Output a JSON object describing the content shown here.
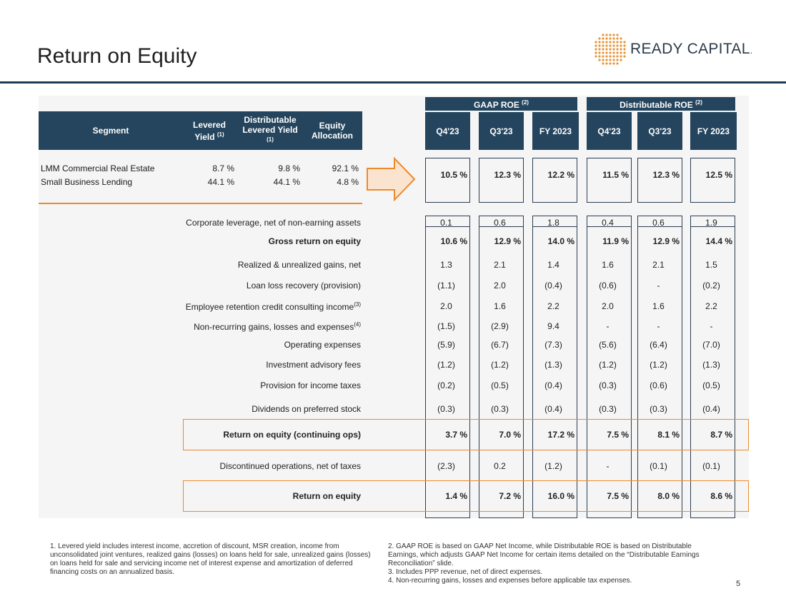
{
  "page": {
    "title": "Return on Equity",
    "page_number": "5"
  },
  "logo": {
    "text": "READY CAPITAL",
    "trademark": "."
  },
  "segment_table": {
    "headers": {
      "segment": "Segment",
      "levered_yield": "Levered Yield",
      "levered_yield_note": "(1)",
      "dist_levered_yield": "Distributable Levered Yield",
      "dist_levered_yield_note": "(1)",
      "equity_allocation": "Equity Allocation"
    },
    "rows": [
      {
        "segment": "LMM Commercial Real Estate",
        "levered_yield": "8.7 %",
        "dist_levered_yield": "9.8 %",
        "equity_allocation": "92.1 %"
      },
      {
        "segment": "Small Business Lending",
        "levered_yield": "44.1 %",
        "dist_levered_yield": "44.1 %",
        "equity_allocation": "4.8 %"
      }
    ]
  },
  "groups": {
    "gaap": {
      "label": "GAAP ROE",
      "note": "(2)"
    },
    "dist": {
      "label": "Distributable ROE",
      "note": "(2)"
    }
  },
  "columns": [
    "Q4'23",
    "Q3'23",
    "FY 2023",
    "Q4'23",
    "Q3'23",
    "FY 2023"
  ],
  "segment_roe": [
    "10.5 %",
    "12.3 %",
    "12.2 %",
    "11.5 %",
    "12.3 %",
    "12.5 %"
  ],
  "rows": [
    {
      "label": "Corporate leverage, net of non-earning assets",
      "note": "",
      "values": [
        "0.1",
        "0.6",
        "1.8",
        "0.4",
        "0.6",
        "1.9"
      ],
      "bold": false
    },
    {
      "label": "Gross return on equity",
      "note": "",
      "values": [
        "10.6 %",
        "12.9 %",
        "14.0 %",
        "11.9 %",
        "12.9 %",
        "14.4 %"
      ],
      "bold": true
    },
    {
      "label": "Realized & unrealized gains, net",
      "note": "",
      "values": [
        "1.3",
        "2.1",
        "1.4",
        "1.6",
        "2.1",
        "1.5"
      ],
      "bold": false
    },
    {
      "label": "Loan loss recovery (provision)",
      "note": "",
      "values": [
        "(1.1)",
        "2.0",
        "(0.4)",
        "(0.6)",
        "-",
        "(0.2)"
      ],
      "bold": false
    },
    {
      "label": "Employee retention credit consulting income",
      "note": "(3)",
      "values": [
        "2.0",
        "1.6",
        "2.2",
        "2.0",
        "1.6",
        "2.2"
      ],
      "bold": false
    },
    {
      "label": "Non-recurring gains, losses and expenses",
      "note": "(4)",
      "values": [
        "(1.5)",
        "(2.9)",
        "9.4",
        "-",
        "-",
        "-"
      ],
      "bold": false
    },
    {
      "label": "Operating expenses",
      "note": "",
      "values": [
        "(5.9)",
        "(6.7)",
        "(7.3)",
        "(5.6)",
        "(6.4)",
        "(7.0)"
      ],
      "bold": false
    },
    {
      "label": "Investment advisory fees",
      "note": "",
      "values": [
        "(1.2)",
        "(1.2)",
        "(1.3)",
        "(1.2)",
        "(1.2)",
        "(1.3)"
      ],
      "bold": false
    },
    {
      "label": "Provision for income taxes",
      "note": "",
      "values": [
        "(0.2)",
        "(0.5)",
        "(0.4)",
        "(0.3)",
        "(0.6)",
        "(0.5)"
      ],
      "bold": false
    },
    {
      "label": "Dividends on preferred stock",
      "note": "",
      "values": [
        "(0.3)",
        "(0.3)",
        "(0.4)",
        "(0.3)",
        "(0.3)",
        "(0.4)"
      ],
      "bold": false
    },
    {
      "label": "Return on equity (continuing ops)",
      "note": "",
      "values": [
        "3.7 %",
        "7.0 %",
        "17.2 %",
        "7.5 %",
        "8.1 %",
        "8.7 %"
      ],
      "bold": true
    },
    {
      "label": "Discontinued operations, net of taxes",
      "note": "",
      "values": [
        "(2.3)",
        "0.2",
        "(1.2)",
        "-",
        "(0.1)",
        "(0.1)"
      ],
      "bold": false
    },
    {
      "label": "Return on equity",
      "note": "",
      "values": [
        "1.4 %",
        "7.2 %",
        "16.0 %",
        "7.5 %",
        "8.0 %",
        "8.6 %"
      ],
      "bold": true
    }
  ],
  "footnotes": {
    "left": [
      "1. Levered yield includes interest income, accretion of discount, MSR creation, income from unconsolidated joint ventures, realized gains (losses) on loans held for sale, unrealized gains (losses) on loans held for sale and servicing income net of interest expense and amortization of deferred financing costs on an annualized basis."
    ],
    "right": [
      "2. GAAP ROE is based on GAAP Net Income, while Distributable ROE is based on Distributable Earnings, which adjusts GAAP Net Income for certain items detailed on the “Distributable Earnings Reconciliation” slide.",
      "3. Includes PPP revenue, net of direct expenses.",
      "4. Non-recurring gains, losses and expenses before applicable tax expenses."
    ]
  },
  "colors": {
    "header": "#24455d",
    "accent": "#ee8a2c",
    "rule": "#1f3b57"
  }
}
